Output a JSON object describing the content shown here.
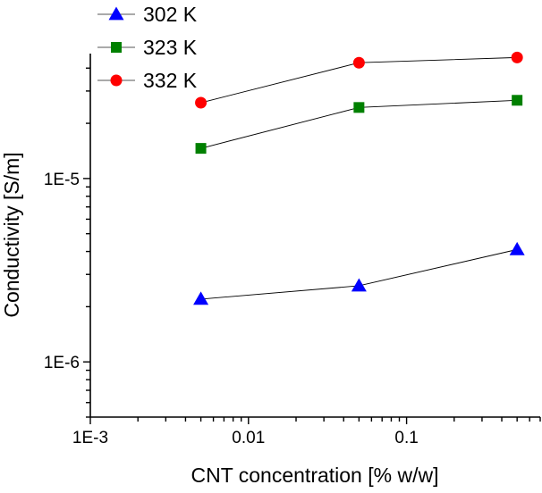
{
  "chart_data": {
    "type": "line",
    "title": "",
    "xlabel": "CNT concentration [% w/w]",
    "ylabel": "Conductivity [S/m]",
    "xscale": "log",
    "yscale": "log",
    "xlim": [
      0.001,
      0.7
    ],
    "ylim": [
      5e-07,
      4.8e-05
    ],
    "grid": false,
    "legend_position": "top-left",
    "x_ticks": [
      {
        "value": 0.001,
        "label": "1E-3"
      },
      {
        "value": 0.01,
        "label": "0.01"
      },
      {
        "value": 0.1,
        "label": "0.1"
      }
    ],
    "y_ticks": [
      {
        "value": 1e-06,
        "label": "1E-6"
      },
      {
        "value": 1e-05,
        "label": "1E-5"
      }
    ],
    "x": [
      0.005,
      0.05,
      0.5
    ],
    "series": [
      {
        "name": "302 K",
        "marker": "triangle",
        "color": "#0000ff",
        "values": [
          2.2e-06,
          2.6e-06,
          4.1e-06
        ]
      },
      {
        "name": "323 K",
        "marker": "square",
        "color": "#008000",
        "values": [
          1.46e-05,
          2.44e-05,
          2.67e-05
        ]
      },
      {
        "name": "332 K",
        "marker": "circle",
        "color": "#ff0000",
        "values": [
          2.59e-05,
          4.28e-05,
          4.57e-05
        ]
      }
    ],
    "line_color": "#000000"
  }
}
